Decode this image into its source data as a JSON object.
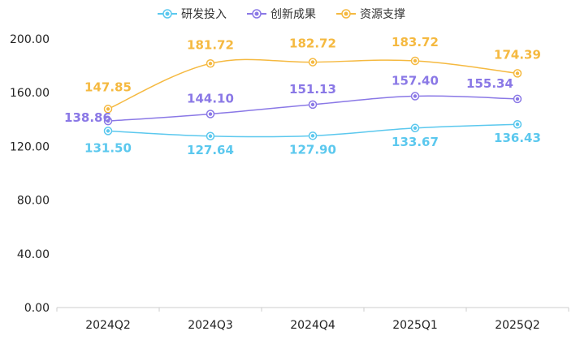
{
  "chart_data": {
    "type": "line",
    "categories": [
      "2024Q2",
      "2024Q3",
      "2024Q4",
      "2025Q1",
      "2025Q2"
    ],
    "ylim": [
      0,
      200
    ],
    "yticks": [
      "0.00",
      "40.00",
      "80.00",
      "120.00",
      "160.00",
      "200.00"
    ],
    "grid": false,
    "smooth": true,
    "legend_position": "top-center",
    "series": [
      {
        "name": "研发投入",
        "color": "#5bc8ee",
        "values": [
          131.5,
          127.64,
          127.9,
          133.67,
          136.43
        ],
        "labels": [
          "131.50",
          "127.64",
          "127.90",
          "133.67",
          "136.43"
        ]
      },
      {
        "name": "创新成果",
        "color": "#8a78e6",
        "values": [
          138.86,
          144.1,
          151.13,
          157.4,
          155.34
        ],
        "labels": [
          "138.86",
          "144.10",
          "151.13",
          "157.40",
          "155.34"
        ]
      },
      {
        "name": "资源支撑",
        "color": "#f5b940",
        "values": [
          147.85,
          181.72,
          182.72,
          183.72,
          174.39
        ],
        "labels": [
          "147.85",
          "181.72",
          "182.72",
          "183.72",
          "174.39"
        ]
      }
    ]
  }
}
